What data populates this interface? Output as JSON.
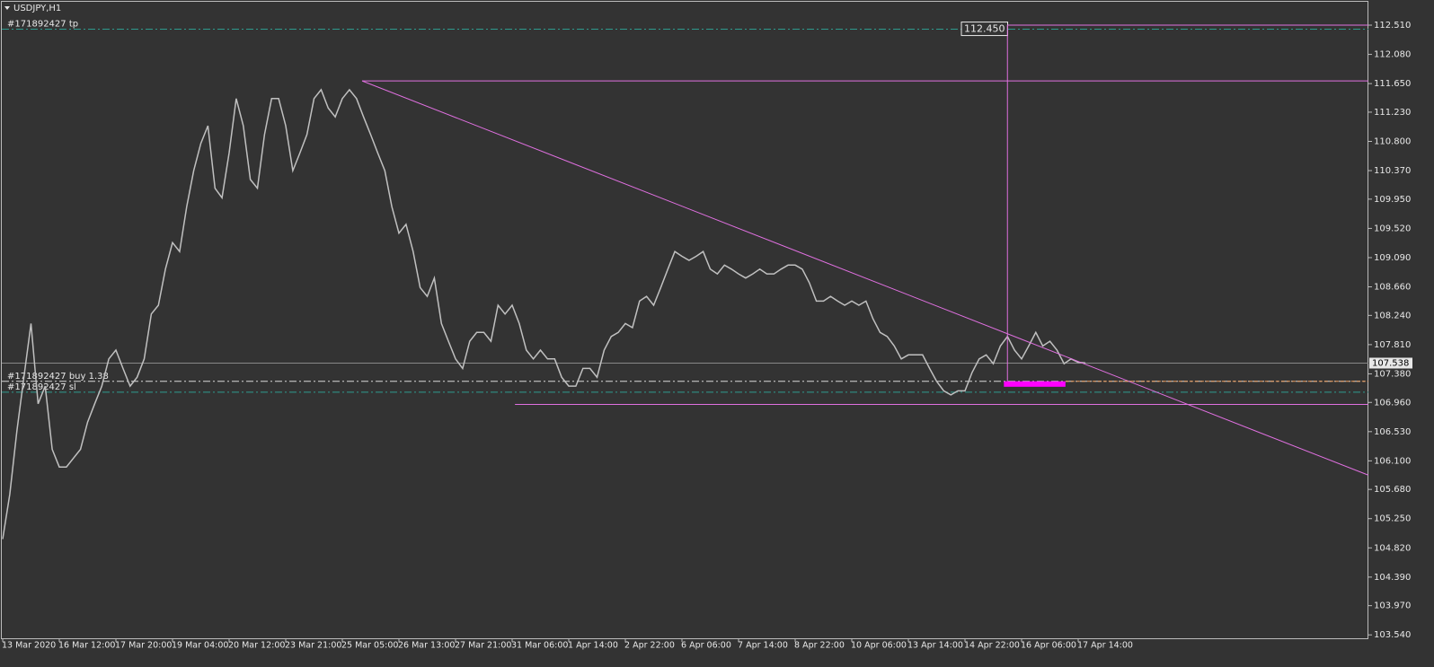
{
  "chart_data": {
    "type": "line",
    "title": "USDJPY,H1",
    "color": "#c0c0c0",
    "background": "#333333",
    "categories": [
      "13 Mar 2020",
      null,
      null,
      null,
      null,
      null,
      null,
      null,
      "16 Mar 12:00",
      null,
      null,
      null,
      null,
      null,
      null,
      null,
      "17 Mar 20:00",
      null,
      null,
      null,
      null,
      null,
      null,
      null,
      "19 Mar 04:00",
      null,
      null,
      null,
      null,
      null,
      null,
      null,
      "20 Mar 12:00",
      null,
      null,
      null,
      null,
      null,
      null,
      null,
      "23 Mar 21:00",
      null,
      null,
      null,
      null,
      null,
      null,
      null,
      "25 Mar 05:00",
      null,
      null,
      null,
      null,
      null,
      null,
      null,
      "26 Mar 13:00",
      null,
      null,
      null,
      null,
      null,
      null,
      null,
      "27 Mar 21:00",
      null,
      null,
      null,
      null,
      null,
      null,
      null,
      "31 Mar 06:00",
      null,
      null,
      null,
      null,
      null,
      null,
      null,
      "1 Apr 14:00",
      null,
      null,
      null,
      null,
      null,
      null,
      null,
      "2 Apr 22:00",
      null,
      null,
      null,
      null,
      null,
      null,
      null,
      "6 Apr 06:00",
      null,
      null,
      null,
      null,
      null,
      null,
      null,
      "7 Apr 14:00",
      null,
      null,
      null,
      null,
      null,
      null,
      null,
      "8 Apr 22:00",
      null,
      null,
      null,
      null,
      null,
      null,
      null,
      "10 Apr 06:00",
      null,
      null,
      null,
      null,
      null,
      null,
      null,
      "13 Apr 14:00",
      null,
      null,
      null,
      null,
      null,
      null,
      null,
      "14 Apr 22:00",
      null,
      null,
      null,
      null,
      null,
      null,
      null,
      "16 Apr 06:00",
      null,
      null,
      null,
      null,
      null,
      null,
      null,
      "17 Apr 14:00",
      null
    ],
    "values": [
      104.95,
      105.61,
      106.54,
      107.33,
      108.12,
      106.94,
      107.2,
      106.27,
      106.01,
      106.01,
      106.14,
      106.27,
      106.67,
      106.94,
      107.2,
      107.6,
      107.73,
      107.46,
      107.2,
      107.33,
      107.6,
      108.26,
      108.39,
      108.92,
      109.31,
      109.18,
      109.84,
      110.37,
      110.77,
      111.03,
      110.11,
      109.97,
      110.63,
      111.43,
      111.03,
      110.24,
      110.11,
      110.9,
      111.43,
      111.43,
      111.03,
      110.37,
      110.63,
      110.9,
      111.43,
      111.56,
      111.29,
      111.16,
      111.43,
      111.56,
      111.43,
      111.16,
      110.9,
      110.63,
      110.37,
      109.84,
      109.45,
      109.58,
      109.18,
      108.65,
      108.52,
      108.79,
      108.12,
      107.86,
      107.6,
      107.46,
      107.86,
      107.99,
      107.99,
      107.86,
      108.39,
      108.26,
      108.39,
      108.12,
      107.73,
      107.6,
      107.73,
      107.6,
      107.6,
      107.33,
      107.2,
      107.2,
      107.46,
      107.46,
      107.33,
      107.73,
      107.93,
      107.99,
      108.12,
      108.06,
      108.45,
      108.52,
      108.39,
      108.65,
      108.92,
      109.18,
      109.11,
      109.05,
      109.11,
      109.18,
      108.92,
      108.85,
      108.98,
      108.92,
      108.85,
      108.79,
      108.85,
      108.92,
      108.85,
      108.85,
      108.92,
      108.98,
      108.98,
      108.92,
      108.72,
      108.45,
      108.45,
      108.52,
      108.45,
      108.39,
      108.45,
      108.39,
      108.45,
      108.19,
      107.99,
      107.93,
      107.79,
      107.6,
      107.66,
      107.66,
      107.66,
      107.46,
      107.27,
      107.13,
      107.07,
      107.13,
      107.13,
      107.4,
      107.6,
      107.66,
      107.53,
      107.79,
      107.93,
      107.73,
      107.6,
      107.79,
      107.99,
      107.79,
      107.86,
      107.73,
      107.53,
      107.6,
      107.55,
      107.54
    ],
    "ylim": [
      103.49,
      112.88
    ],
    "yticks": [
      {
        "value": 112.51,
        "label": "112.510"
      },
      {
        "value": 112.08,
        "label": "112.080"
      },
      {
        "value": 111.65,
        "label": "111.650"
      },
      {
        "value": 111.23,
        "label": "111.230"
      },
      {
        "value": 110.8,
        "label": "110.800"
      },
      {
        "value": 110.37,
        "label": "110.370"
      },
      {
        "value": 109.95,
        "label": "109.950"
      },
      {
        "value": 109.52,
        "label": "109.520"
      },
      {
        "value": 109.09,
        "label": "109.090"
      },
      {
        "value": 108.66,
        "label": "108.660"
      },
      {
        "value": 108.24,
        "label": "108.240"
      },
      {
        "value": 107.81,
        "label": "107.810"
      },
      {
        "value": 107.38,
        "label": "107.380"
      },
      {
        "value": 106.96,
        "label": "106.960"
      },
      {
        "value": 106.53,
        "label": "106.530"
      },
      {
        "value": 106.1,
        "label": "106.100"
      },
      {
        "value": 105.68,
        "label": "105.680"
      },
      {
        "value": 105.25,
        "label": "105.250"
      },
      {
        "value": 104.82,
        "label": "104.820"
      },
      {
        "value": 104.39,
        "label": "104.390"
      },
      {
        "value": 103.97,
        "label": "103.970"
      },
      {
        "value": 103.54,
        "label": "103.540"
      }
    ],
    "levels": [
      {
        "name": "#171892427 tp",
        "value": 112.45,
        "color": "#2e9a8e",
        "price_label": "112.450"
      },
      {
        "name": "#171892427 buy 1.38",
        "value": 107.27,
        "color": "#d8d8d8"
      },
      {
        "name": "#171892427 sl",
        "value": 107.11,
        "color": "#2e9a8e"
      }
    ],
    "current_price": {
      "value": 107.538,
      "label": "107.538"
    },
    "objects": [
      {
        "kind": "line",
        "color": "#e070e0",
        "from": [
          50.8,
          111.69
        ],
        "to": [
          193,
          105.89
        ]
      },
      {
        "kind": "line",
        "color": "#e070e0",
        "from": [
          50.8,
          111.69
        ],
        "to": [
          193,
          111.69
        ]
      },
      {
        "kind": "line",
        "color": "#e070e0",
        "from": [
          72.4,
          106.93
        ],
        "to": [
          193,
          106.93
        ]
      },
      {
        "kind": "line",
        "color": "#e070e0",
        "from": [
          142,
          107.2
        ],
        "to": [
          142,
          112.51
        ]
      },
      {
        "kind": "line",
        "color": "#e070e0",
        "from": [
          142,
          112.51
        ],
        "to": [
          193,
          112.51
        ]
      },
      {
        "kind": "rect",
        "color": "#ff00ff",
        "from": [
          141.5,
          107.27
        ],
        "to": [
          150.2,
          107.19
        ]
      },
      {
        "kind": "dash",
        "color": "#f0a060",
        "from": [
          150.2,
          107.27
        ],
        "to": [
          193,
          107.27
        ]
      }
    ]
  }
}
